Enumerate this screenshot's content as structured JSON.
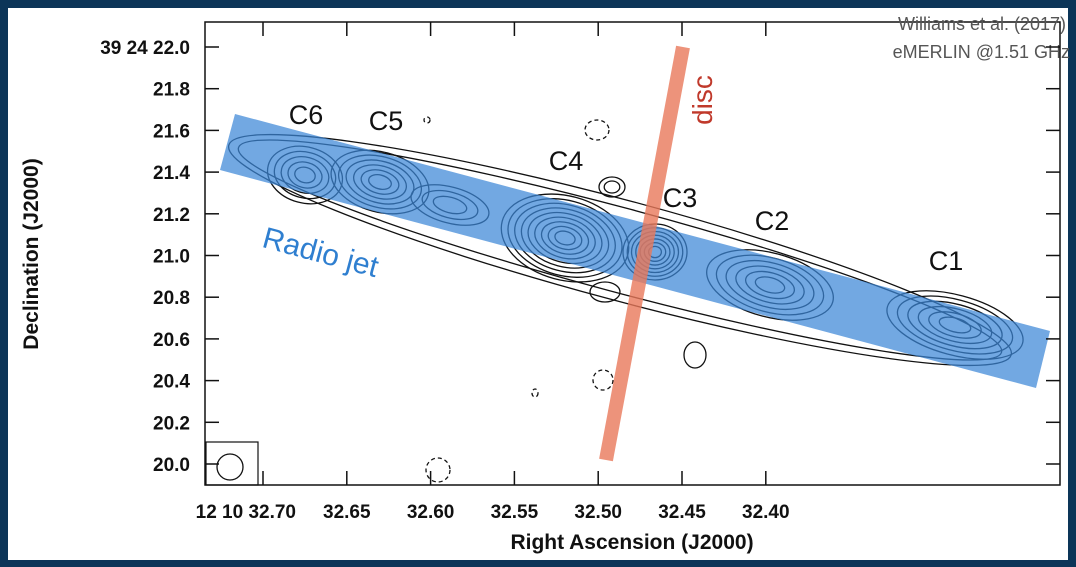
{
  "figure": {
    "y_axis_label": "Declination (J2000)",
    "x_axis_label": "Right Ascension (J2000)",
    "y_ticks": [
      "39 24 22.0",
      "21.8",
      "21.6",
      "21.4",
      "21.2",
      "21.0",
      "20.8",
      "20.6",
      "20.4",
      "20.2",
      "20.0"
    ],
    "x_ticks": [
      "12 10 32.70",
      "32.65",
      "32.60",
      "32.55",
      "32.50",
      "32.45",
      "32.40"
    ],
    "credit": [
      "Williams et al. (2017)",
      "eMERLIN @1.51 GHz"
    ],
    "components": [
      "C6",
      "C5",
      "C4",
      "C3",
      "C2",
      "C1"
    ],
    "disc_label": "disc",
    "jet_label": "Radio jet"
  }
}
